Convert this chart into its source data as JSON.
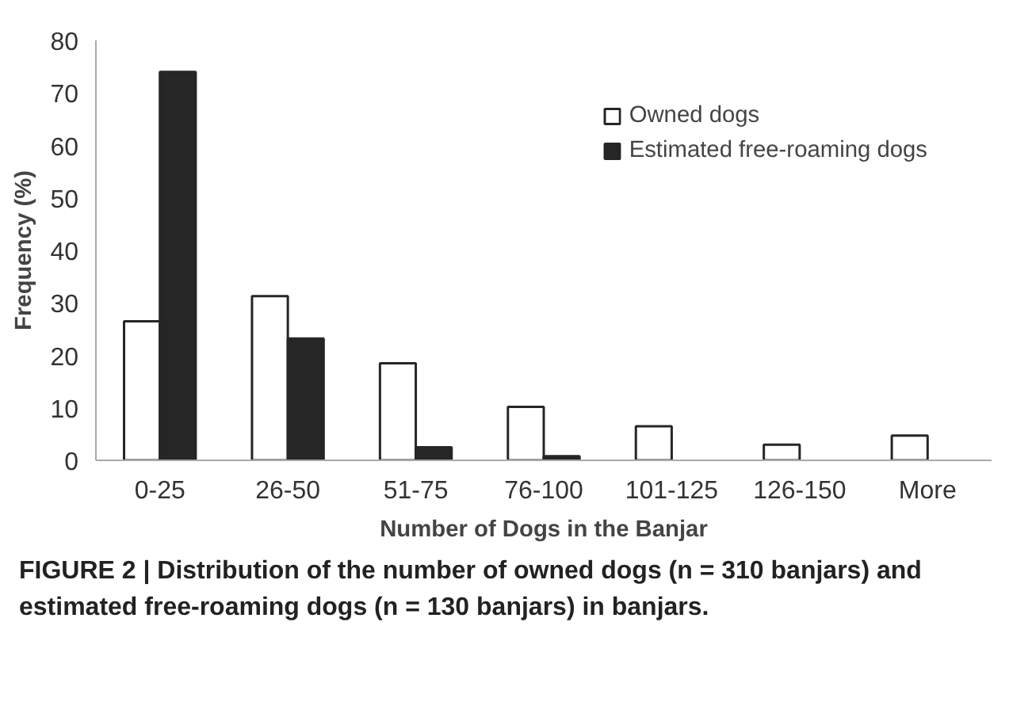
{
  "chart_data": {
    "type": "bar",
    "xlabel": "Number of Dogs in the Banjar",
    "ylabel": "Frequency (%)",
    "categories": [
      "0-25",
      "26-50",
      "51-75",
      "76-100",
      "101-125",
      "126-150",
      "More"
    ],
    "series": [
      {
        "name": "Owned dogs",
        "color": "#ffffff",
        "values": [
          26.5,
          31.3,
          18.5,
          10.2,
          6.5,
          3,
          4.7
        ]
      },
      {
        "name": "Estimated free-roaming dogs",
        "color": "#262626",
        "values": [
          74,
          23.2,
          2.5,
          0.8,
          null,
          null,
          null
        ]
      }
    ],
    "ylim": [
      0,
      80
    ],
    "yticks": [
      0,
      10,
      20,
      30,
      40,
      50,
      60,
      70,
      80
    ],
    "grid": false,
    "legend": "top right",
    "annotations": [
      "FIGURE 2 | Distribution of the number of owned dogs (n = 310 banjars) and estimated free-roaming dogs (n = 130 banjars) in banjars."
    ]
  }
}
